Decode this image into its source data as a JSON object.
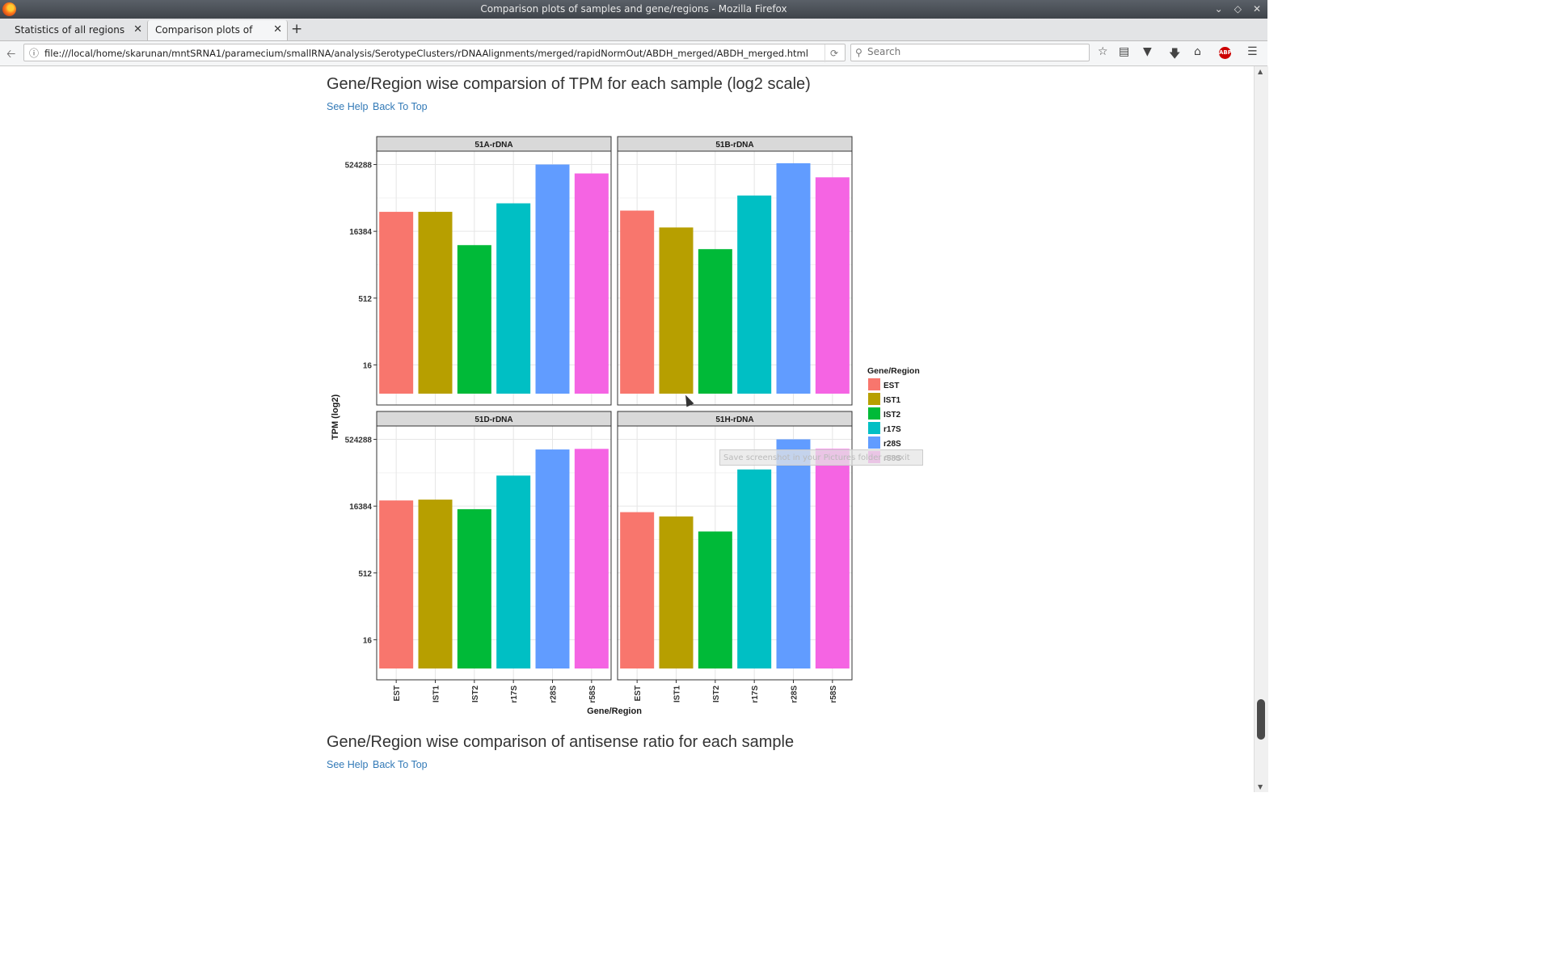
{
  "window": {
    "title": "Comparison plots of samples and gene/regions - Mozilla Firefox"
  },
  "tabs": [
    {
      "label": "Statistics of all regions"
    },
    {
      "label": "Comparison plots of sampl..."
    }
  ],
  "address": {
    "url": "file:///local/home/skarunan/mntSRNA1/paramecium/smallRNA/analysis/SerotypeClusters/rDNAAlignments/merged/rapidNormOut/ABDH_merged/ABDH_merged.html"
  },
  "search": {
    "placeholder": "Search"
  },
  "sections": [
    {
      "title": "Gene/Region wise comparsion of TPM for each sample (log2 scale)",
      "help": "See Help",
      "top": "Back To Top"
    },
    {
      "title": "Gene/Region wise comparison of antisense ratio for each sample",
      "help": "See Help",
      "top": "Back To Top"
    }
  ],
  "tooltip": "Save screenshot in your Pictures folder or exit",
  "chart_data": {
    "type": "bar",
    "xlabel": "Gene/Region",
    "ylabel": "TPM (log2)",
    "scale": "log2",
    "ylim": [
      2,
      1048576
    ],
    "yticks": [
      16,
      512,
      16384,
      524288
    ],
    "ytick_labels": [
      "16",
      "512",
      "16384",
      "524288"
    ],
    "categories": [
      "EST",
      "IST1",
      "IST2",
      "r17S",
      "r28S",
      "r58S"
    ],
    "legend": {
      "title": "Gene/Region",
      "position": "right"
    },
    "colors": [
      "#F8766D",
      "#B79F00",
      "#00BA38",
      "#00BFC4",
      "#619CFF",
      "#F564E3"
    ],
    "panels": [
      {
        "name": "51A-rDNA",
        "values": [
          45000,
          45000,
          8000,
          70000,
          524288,
          330000
        ]
      },
      {
        "name": "51B-rDNA",
        "values": [
          48000,
          20000,
          6500,
          105000,
          560000,
          270000
        ]
      },
      {
        "name": "51D-rDNA",
        "values": [
          22000,
          23000,
          14000,
          80000,
          310000,
          320000
        ]
      },
      {
        "name": "51H-rDNA",
        "values": [
          12000,
          9600,
          4400,
          110000,
          524288,
          320000
        ]
      }
    ]
  }
}
